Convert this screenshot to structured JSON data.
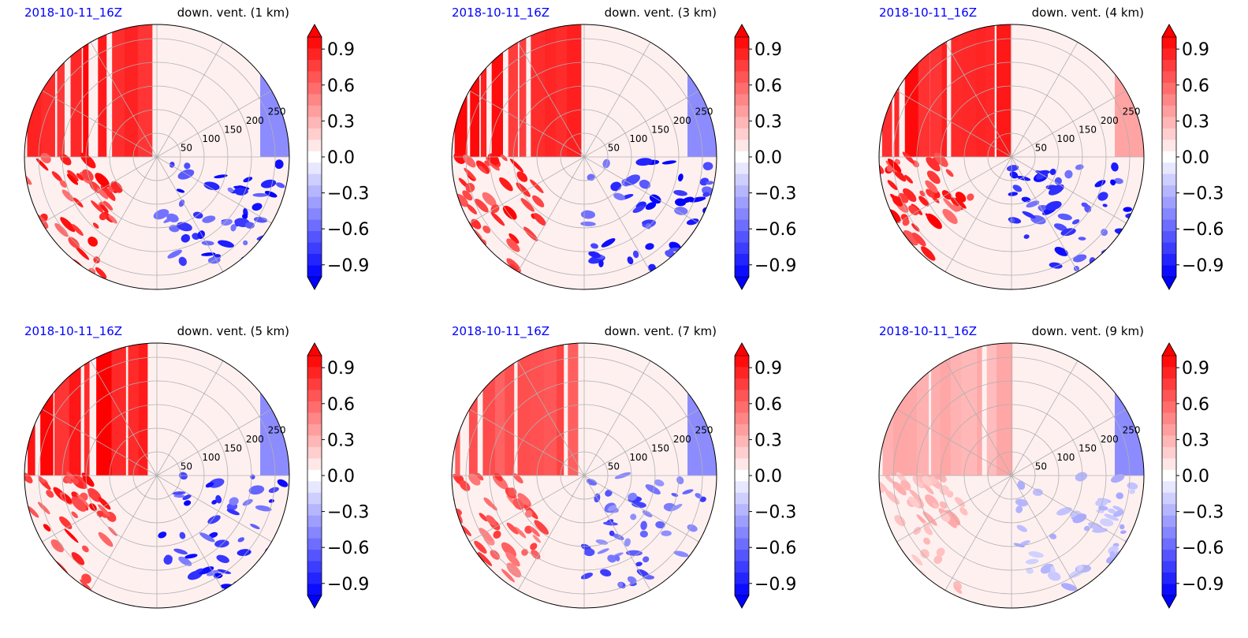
{
  "chart_data": [
    {
      "type": "heatmap",
      "projection": "polar",
      "date_label": "2018-10-11_16Z",
      "title": "down. vent. (1 km)",
      "radial_ticks": [
        "50",
        "100",
        "150",
        "200",
        "250"
      ],
      "rlim": [
        0,
        280
      ],
      "grid": true,
      "colormap": "bwr",
      "colorbar": {
        "range": [
          -1.0,
          1.0
        ],
        "ticks": [
          "0.9",
          "0.6",
          "0.3",
          "0.0",
          "−0.3",
          "−0.6",
          "−0.9"
        ],
        "extend": "both"
      }
    },
    {
      "type": "heatmap",
      "projection": "polar",
      "date_label": "2018-10-11_16Z",
      "title": "down. vent. (3 km)",
      "radial_ticks": [
        "50",
        "100",
        "150",
        "200",
        "250"
      ],
      "rlim": [
        0,
        280
      ],
      "grid": true,
      "colormap": "bwr",
      "colorbar": {
        "range": [
          -1.0,
          1.0
        ],
        "ticks": [
          "0.9",
          "0.6",
          "0.3",
          "0.0",
          "−0.3",
          "−0.6",
          "−0.9"
        ],
        "extend": "both"
      }
    },
    {
      "type": "heatmap",
      "projection": "polar",
      "date_label": "2018-10-11_16Z",
      "title": "down. vent. (4 km)",
      "radial_ticks": [
        "50",
        "100",
        "150",
        "200",
        "250"
      ],
      "rlim": [
        0,
        280
      ],
      "grid": true,
      "colormap": "bwr",
      "colorbar": {
        "range": [
          -1.0,
          1.0
        ],
        "ticks": [
          "0.9",
          "0.6",
          "0.3",
          "0.0",
          "−0.3",
          "−0.6",
          "−0.9"
        ],
        "extend": "both"
      }
    },
    {
      "type": "heatmap",
      "projection": "polar",
      "date_label": "2018-10-11_16Z",
      "title": "down. vent. (5 km)",
      "radial_ticks": [
        "50",
        "100",
        "150",
        "200",
        "250"
      ],
      "rlim": [
        0,
        280
      ],
      "grid": true,
      "colormap": "bwr",
      "colorbar": {
        "range": [
          -1.0,
          1.0
        ],
        "ticks": [
          "0.9",
          "0.6",
          "0.3",
          "0.0",
          "−0.3",
          "−0.6",
          "−0.9"
        ],
        "extend": "both"
      }
    },
    {
      "type": "heatmap",
      "projection": "polar",
      "date_label": "2018-10-11_16Z",
      "title": "down. vent. (7 km)",
      "radial_ticks": [
        "50",
        "100",
        "150",
        "200",
        "250"
      ],
      "rlim": [
        0,
        280
      ],
      "grid": true,
      "colormap": "bwr",
      "colorbar": {
        "range": [
          -1.0,
          1.0
        ],
        "ticks": [
          "0.9",
          "0.6",
          "0.3",
          "0.0",
          "−0.3",
          "−0.6",
          "−0.9"
        ],
        "extend": "both"
      }
    },
    {
      "type": "heatmap",
      "projection": "polar",
      "date_label": "2018-10-11_16Z",
      "title": "down. vent. (9 km)",
      "radial_ticks": [
        "50",
        "100",
        "150",
        "200",
        "250"
      ],
      "rlim": [
        0,
        280
      ],
      "grid": true,
      "colormap": "bwr",
      "colorbar": {
        "range": [
          -1.0,
          1.0
        ],
        "ticks": [
          "0.9",
          "0.6",
          "0.3",
          "0.0",
          "−0.3",
          "−0.6",
          "−0.9"
        ],
        "extend": "both"
      }
    }
  ],
  "colors": {
    "date_label": "#0000ff",
    "positive": "#ff0000",
    "negative": "#0000ff",
    "neutral": "#ffffff",
    "grid": "#b0b0b0"
  }
}
